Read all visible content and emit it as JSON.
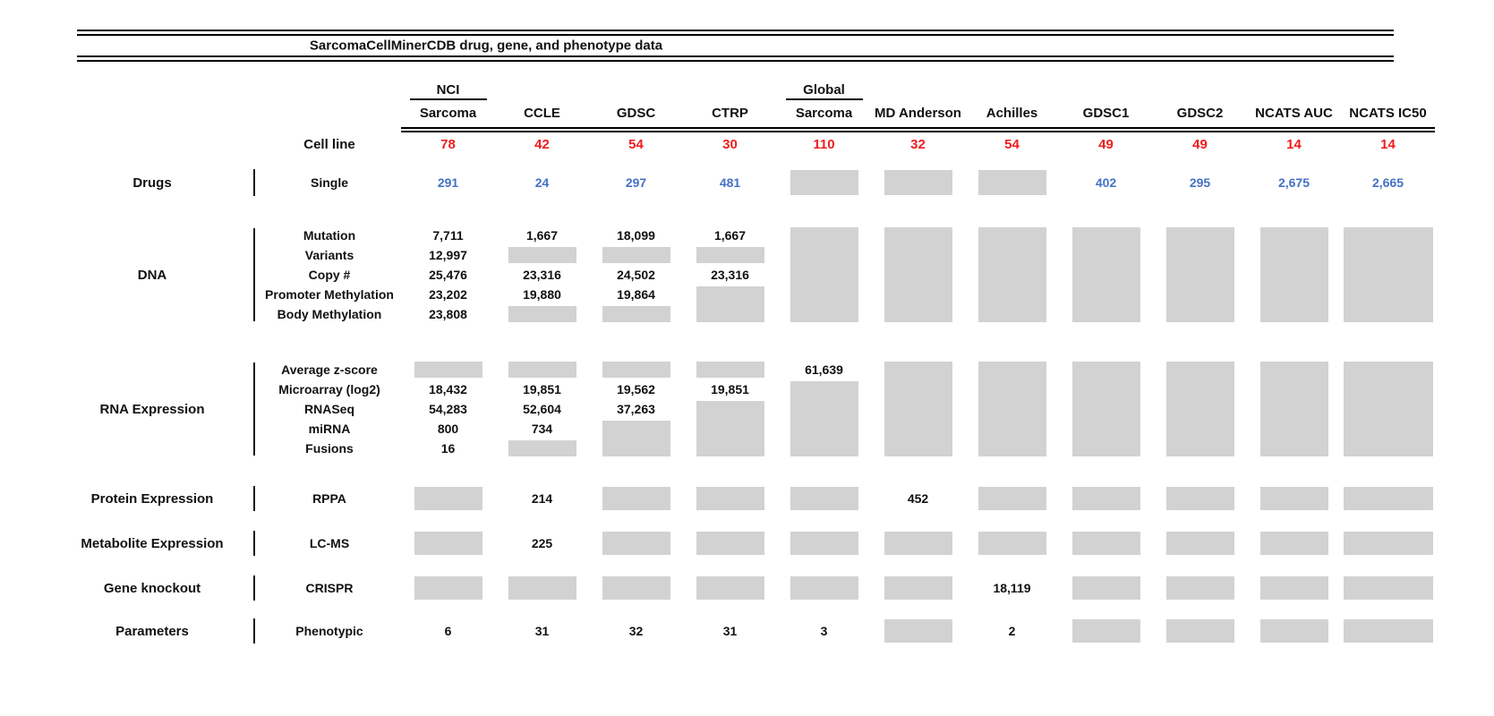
{
  "title": "SarcomaCellMinerCDB drug, gene, and phenotype data",
  "cell_line_label": "Cell line",
  "colors": {
    "count_red": "#ee1d1d",
    "drug_blue": "#4472c4",
    "missing_gray": "#d2d2d2",
    "text_black": "#111111"
  },
  "columns": [
    {
      "top": "NCI",
      "name": "Sarcoma",
      "count": "78"
    },
    {
      "name": "CCLE",
      "count": "42"
    },
    {
      "name": "GDSC",
      "count": "54"
    },
    {
      "name": "CTRP",
      "count": "30"
    },
    {
      "top": "Global",
      "name": "Sarcoma",
      "count": "110"
    },
    {
      "name": "MD Anderson",
      "count": "32"
    },
    {
      "name": "Achilles",
      "count": "54"
    },
    {
      "name": "GDSC1",
      "count": "49"
    },
    {
      "name": "GDSC2",
      "count": "49"
    },
    {
      "name": "NCATS AUC",
      "count": "14"
    },
    {
      "name": "NCATS IC50",
      "count": "14"
    }
  ],
  "sections": [
    {
      "category": "Drugs",
      "row_labels": [
        "Single"
      ],
      "value_color": "blue",
      "columns": [
        [
          "291"
        ],
        [
          "24"
        ],
        [
          "297"
        ],
        [
          "481"
        ],
        [
          {
            "gray": 1
          }
        ],
        [
          {
            "gray": 1
          }
        ],
        [
          {
            "gray": 1
          }
        ],
        [
          "402"
        ],
        [
          "295"
        ],
        [
          "2,675"
        ],
        [
          "2,665"
        ]
      ]
    },
    {
      "category": "DNA",
      "row_labels": [
        "Mutation",
        "Variants",
        "Copy #",
        "Promoter Methylation",
        "Body Methylation"
      ],
      "value_color": "black",
      "columns": [
        [
          "7,711",
          "12,997",
          "25,476",
          "23,202",
          "23,808"
        ],
        [
          "1,667",
          {
            "gray": 1
          },
          "23,316",
          "19,880",
          {
            "gray": 1
          }
        ],
        [
          "18,099",
          {
            "gray": 1
          },
          "24,502",
          "19,864",
          {
            "gray": 1
          }
        ],
        [
          "1,667",
          {
            "gray": 1
          },
          "23,316",
          {
            "gray": 2
          }
        ],
        [
          {
            "gray": 5
          }
        ],
        [
          {
            "gray": 5
          }
        ],
        [
          {
            "gray": 5
          }
        ],
        [
          {
            "gray": 5
          }
        ],
        [
          {
            "gray": 5
          }
        ],
        [
          {
            "gray": 5
          }
        ],
        [
          {
            "gray": 5
          }
        ]
      ]
    },
    {
      "category": "RNA Expression",
      "row_labels": [
        "Average z-score",
        "Microarray (log2)",
        "RNASeq",
        "miRNA",
        "Fusions"
      ],
      "value_color": "black",
      "columns": [
        [
          {
            "gray": 1
          },
          "18,432",
          "54,283",
          "800",
          "16"
        ],
        [
          {
            "gray": 1
          },
          "19,851",
          "52,604",
          "734",
          {
            "gray": 1
          }
        ],
        [
          {
            "gray": 1
          },
          "19,562",
          "37,263",
          {
            "gray": 2
          }
        ],
        [
          {
            "gray": 1
          },
          "19,851",
          {
            "gray": 3
          }
        ],
        [
          "61,639",
          {
            "gray": 4
          }
        ],
        [
          {
            "gray": 5
          }
        ],
        [
          {
            "gray": 5
          }
        ],
        [
          {
            "gray": 5
          }
        ],
        [
          {
            "gray": 5
          }
        ],
        [
          {
            "gray": 5
          }
        ],
        [
          {
            "gray": 5
          }
        ]
      ]
    },
    {
      "category": "Protein Expression",
      "row_labels": [
        "RPPA"
      ],
      "value_color": "black",
      "columns": [
        [
          {
            "gray": 1
          }
        ],
        [
          "214"
        ],
        [
          {
            "gray": 1
          }
        ],
        [
          {
            "gray": 1
          }
        ],
        [
          {
            "gray": 1
          }
        ],
        [
          "452"
        ],
        [
          {
            "gray": 1
          }
        ],
        [
          {
            "gray": 1
          }
        ],
        [
          {
            "gray": 1
          }
        ],
        [
          {
            "gray": 1
          }
        ],
        [
          {
            "gray": 1
          }
        ]
      ]
    },
    {
      "category": "Metabolite Expression",
      "row_labels": [
        "LC-MS"
      ],
      "value_color": "black",
      "columns": [
        [
          {
            "gray": 1
          }
        ],
        [
          "225"
        ],
        [
          {
            "gray": 1
          }
        ],
        [
          {
            "gray": 1
          }
        ],
        [
          {
            "gray": 1
          }
        ],
        [
          {
            "gray": 1
          }
        ],
        [
          {
            "gray": 1
          }
        ],
        [
          {
            "gray": 1
          }
        ],
        [
          {
            "gray": 1
          }
        ],
        [
          {
            "gray": 1
          }
        ],
        [
          {
            "gray": 1
          }
        ]
      ]
    },
    {
      "category": "Gene knockout",
      "row_labels": [
        "CRISPR"
      ],
      "value_color": "black",
      "columns": [
        [
          {
            "gray": 1
          }
        ],
        [
          {
            "gray": 1
          }
        ],
        [
          {
            "gray": 1
          }
        ],
        [
          {
            "gray": 1
          }
        ],
        [
          {
            "gray": 1
          }
        ],
        [
          {
            "gray": 1
          }
        ],
        [
          "18,119"
        ],
        [
          {
            "gray": 1
          }
        ],
        [
          {
            "gray": 1
          }
        ],
        [
          {
            "gray": 1
          }
        ],
        [
          {
            "gray": 1
          }
        ]
      ]
    },
    {
      "category": "Parameters",
      "row_labels": [
        "Phenotypic"
      ],
      "value_color": "black",
      "columns": [
        [
          "6"
        ],
        [
          "31"
        ],
        [
          "32"
        ],
        [
          "31"
        ],
        [
          "3"
        ],
        [
          {
            "gray": 1
          }
        ],
        [
          "2"
        ],
        [
          {
            "gray": 1
          }
        ],
        [
          {
            "gray": 1
          }
        ],
        [
          {
            "gray": 1
          }
        ],
        [
          {
            "gray": 1
          }
        ]
      ]
    }
  ]
}
